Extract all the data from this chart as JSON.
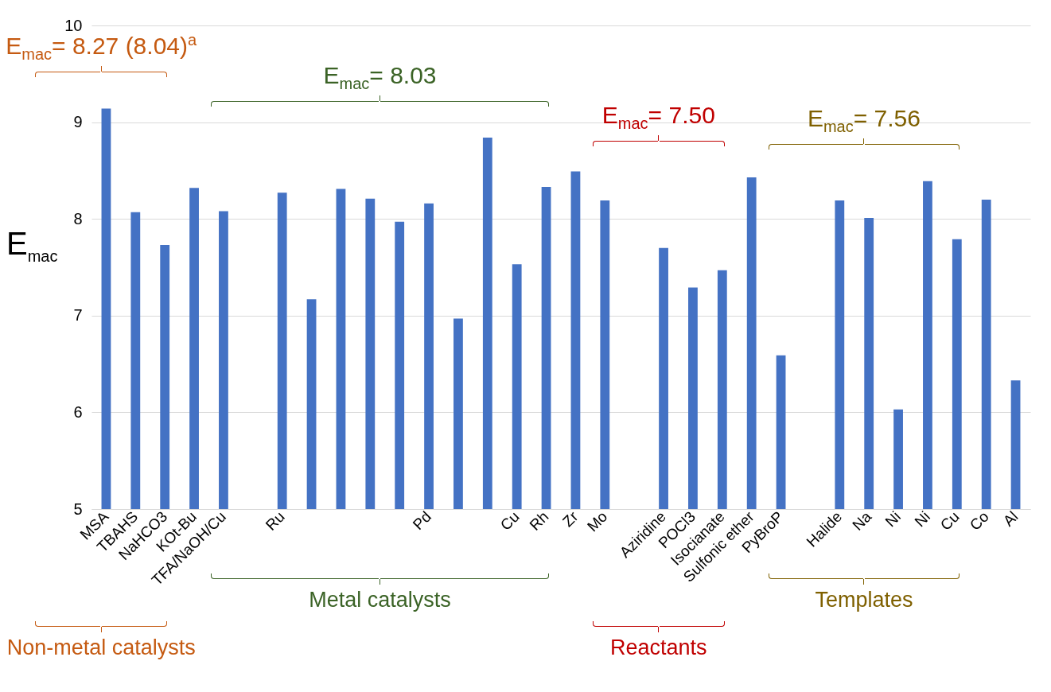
{
  "chart_data": {
    "type": "bar",
    "ylabel": "E$_{mac}$",
    "categories": [
      "MSA",
      "TBAHS",
      "NaHCO3",
      "KOt-Bu",
      "TFA/NaOH/Cu",
      null,
      "Ru",
      null,
      null,
      null,
      null,
      "Pd",
      null,
      null,
      "Cu",
      "Rh",
      "Zr",
      "Mo",
      null,
      "Aziridine",
      "POCl3",
      "Isocianate",
      "Sulfonic ether",
      "PyBroP",
      null,
      "Halide",
      "Na",
      "Ni",
      "Ni",
      "Cu",
      "Co",
      "Al"
    ],
    "values": [
      9.14,
      8.07,
      7.73,
      8.32,
      8.08,
      null,
      8.27,
      7.17,
      8.31,
      8.21,
      7.97,
      8.16,
      6.97,
      8.84,
      7.53,
      8.33,
      8.49,
      8.19,
      null,
      7.7,
      7.29,
      7.47,
      8.43,
      6.59,
      null,
      8.19,
      8.01,
      6.03,
      8.39,
      7.79,
      8.2,
      6.33
    ],
    "color": "#4472c4",
    "ylim": [
      5,
      10
    ],
    "yticks": [
      5,
      6,
      7,
      8,
      9,
      10
    ],
    "grid": "y",
    "annotations": [
      "E$_{mac}$= 8.27 (8.04)$^{a}$",
      "E$_{mac}$= 8.03",
      "E$_{mac}$= 7.50",
      "E$_{mac}$= 7.56",
      "Non-metal catalysts",
      "Metal catalysts",
      "Reactants",
      "Templates"
    ]
  }
}
